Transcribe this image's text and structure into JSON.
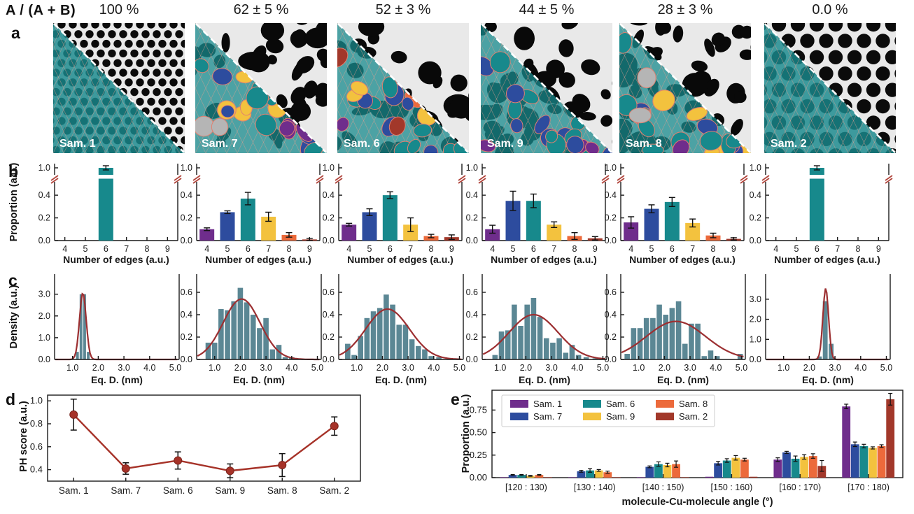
{
  "header": {
    "ratio_label": "A / (A + B)"
  },
  "panel_labels": {
    "a": "a",
    "b": "b",
    "c": "c",
    "d": "d",
    "e": "e"
  },
  "colors": {
    "palette": [
      "#6f2d8c",
      "#2d4c9e",
      "#17898c",
      "#f3c23e",
      "#ec6a3b",
      "#a2382a"
    ],
    "hist_bar": "#5b8794",
    "fit_curve": "#9c2f31",
    "ph_line": "#a63228",
    "break_mark": "#b0433a",
    "gray_blob": "#b5b5b5",
    "overlay_mesh": "#e2a193",
    "legend_border": "#cccccc"
  },
  "samples": [
    {
      "label": "Sam. 1",
      "ratio": "100 %",
      "pattern": "hex-small",
      "overlay": "uniform",
      "has_gray": false
    },
    {
      "label": "Sam. 7",
      "ratio": "62 ± 5 %",
      "pattern": "blob",
      "overlay": "mixed",
      "has_gray": true
    },
    {
      "label": "Sam. 6",
      "ratio": "52 ± 3 %",
      "pattern": "blob",
      "overlay": "mixed",
      "has_gray": false
    },
    {
      "label": "Sam. 9",
      "ratio": "44 ± 5 %",
      "pattern": "blob",
      "overlay": "mixed",
      "has_gray": false
    },
    {
      "label": "Sam. 8",
      "ratio": "28 ± 3 %",
      "pattern": "blob",
      "overlay": "mixed",
      "has_gray": true
    },
    {
      "label": "Sam. 2",
      "ratio": "0.0 %",
      "pattern": "hex-large",
      "overlay": "uniform",
      "has_gray": false
    }
  ],
  "chart_data": [
    {
      "id": "b-sam1",
      "panel": "b",
      "type": "bar",
      "sample": "Sam. 1",
      "broken_axis": true,
      "xlabel": "Number of edges (a.u.)",
      "ylabel": "Proportion (a.u.)",
      "categories": [
        "4",
        "5",
        "6",
        "7",
        "8",
        "9"
      ],
      "values": [
        0,
        0,
        1.0,
        0,
        0,
        0
      ],
      "errors": [
        0,
        0,
        0.01,
        0,
        0,
        0
      ],
      "yticks_lower": [
        "0.0",
        "0.2",
        "0.4"
      ],
      "ytick_top": "1.0"
    },
    {
      "id": "b-sam7",
      "panel": "b",
      "type": "bar",
      "sample": "Sam. 7",
      "broken_axis": true,
      "xlabel": "Number of edges (a.u.)",
      "categories": [
        "4",
        "5",
        "6",
        "7",
        "8",
        "9"
      ],
      "values": [
        0.1,
        0.25,
        0.37,
        0.21,
        0.05,
        0.01
      ],
      "errors": [
        0.012,
        0.012,
        0.055,
        0.04,
        0.02,
        0.01
      ],
      "yticks_lower": [
        "0.0",
        "0.2",
        "0.4"
      ],
      "ytick_top": "1.0"
    },
    {
      "id": "b-sam6",
      "panel": "b",
      "type": "bar",
      "sample": "Sam. 6",
      "broken_axis": true,
      "xlabel": "Number of edges (a.u.)",
      "categories": [
        "4",
        "5",
        "6",
        "7",
        "8",
        "9"
      ],
      "values": [
        0.14,
        0.25,
        0.4,
        0.14,
        0.04,
        0.03
      ],
      "errors": [
        0.012,
        0.03,
        0.03,
        0.06,
        0.015,
        0.02
      ],
      "yticks_lower": [
        "0.0",
        "0.2",
        "0.4"
      ],
      "ytick_top": "1.0"
    },
    {
      "id": "b-sam9",
      "panel": "b",
      "type": "bar",
      "sample": "Sam. 9",
      "broken_axis": true,
      "xlabel": "Number of edges (a.u.)",
      "categories": [
        "4",
        "5",
        "6",
        "7",
        "8",
        "9"
      ],
      "values": [
        0.1,
        0.35,
        0.35,
        0.14,
        0.04,
        0.02
      ],
      "errors": [
        0.035,
        0.085,
        0.06,
        0.025,
        0.03,
        0.015
      ],
      "yticks_lower": [
        "0.0",
        "0.2",
        "0.4"
      ],
      "ytick_top": "1.0"
    },
    {
      "id": "b-sam8",
      "panel": "b",
      "type": "bar",
      "sample": "Sam. 8",
      "broken_axis": true,
      "xlabel": "Number of edges (a.u.)",
      "categories": [
        "4",
        "5",
        "6",
        "7",
        "8",
        "9"
      ],
      "values": [
        0.16,
        0.28,
        0.34,
        0.155,
        0.045,
        0.015
      ],
      "errors": [
        0.05,
        0.035,
        0.04,
        0.035,
        0.02,
        0.01
      ],
      "yticks_lower": [
        "0.0",
        "0.2",
        "0.4"
      ],
      "ytick_top": "1.0"
    },
    {
      "id": "b-sam2",
      "panel": "b",
      "type": "bar",
      "sample": "Sam. 2",
      "broken_axis": true,
      "xlabel": "Number of edges (a.u.)",
      "categories": [
        "4",
        "5",
        "6",
        "7",
        "8",
        "9"
      ],
      "values": [
        0,
        0,
        1.0,
        0,
        0,
        0
      ],
      "errors": [
        0,
        0,
        0.01,
        0,
        0,
        0
      ],
      "yticks_lower": [
        "0.0",
        "0.2",
        "0.4"
      ],
      "ytick_top": "1.0"
    },
    {
      "id": "c-sam1",
      "panel": "c",
      "type": "histogram",
      "sample": "Sam. 1",
      "xlabel": "Eq. D. (nm)",
      "ylabel": "Density (a.u.)",
      "xlim": [
        0.3,
        5.15
      ],
      "xticks": [
        "1.0",
        "2.0",
        "3.0",
        "4.0",
        "5.0"
      ],
      "ymax": 3.6,
      "yticks": [
        0,
        1,
        2,
        3
      ],
      "ytick_labels": [
        "0.0",
        "1.0",
        "2.0",
        "3.0"
      ],
      "bin": 0.14,
      "bars": [
        [
          1.19,
          0.35
        ],
        [
          1.33,
          3.0
        ],
        [
          1.47,
          3.0
        ],
        [
          1.61,
          0.35
        ]
      ],
      "curve": {
        "mean": 1.4,
        "sigma": 0.13,
        "amp": 3.05
      }
    },
    {
      "id": "c-sam7",
      "panel": "c",
      "type": "histogram",
      "sample": "Sam. 7",
      "xlabel": "Eq. D. (nm)",
      "xlim": [
        0.3,
        5.15
      ],
      "xticks": [
        "1.0",
        "2.0",
        "3.0",
        "4.0",
        "5.0"
      ],
      "ymax": 0.7,
      "yticks": [
        0,
        0.2,
        0.4,
        0.6
      ],
      "ytick_labels": [
        "0.0",
        "0.2",
        "0.4",
        "0.6"
      ],
      "bin": 0.24,
      "bars": [
        [
          0.75,
          0.15
        ],
        [
          1.0,
          0.15
        ],
        [
          1.25,
          0.45
        ],
        [
          1.5,
          0.44
        ],
        [
          1.75,
          0.52
        ],
        [
          2.0,
          0.64
        ],
        [
          2.25,
          0.51
        ],
        [
          2.5,
          0.4
        ],
        [
          2.75,
          0.28
        ],
        [
          3.0,
          0.37
        ],
        [
          3.25,
          0.09
        ],
        [
          3.5,
          0.13
        ],
        [
          3.75,
          0.02
        ],
        [
          4.0,
          0.02
        ]
      ],
      "curve": {
        "mean": 2.05,
        "sigma": 0.72,
        "amp": 0.54
      }
    },
    {
      "id": "c-sam6",
      "panel": "c",
      "type": "histogram",
      "sample": "Sam. 6",
      "xlabel": "Eq. D. (nm)",
      "xlim": [
        0.3,
        5.15
      ],
      "xticks": [
        "1.0",
        "2.0",
        "3.0",
        "4.0",
        "5.0"
      ],
      "ymax": 0.7,
      "yticks": [
        0,
        0.2,
        0.4,
        0.6
      ],
      "ytick_labels": [
        "0.0",
        "0.2",
        "0.4",
        "0.6"
      ],
      "bin": 0.24,
      "bars": [
        [
          0.65,
          0.14
        ],
        [
          0.9,
          0.04
        ],
        [
          1.15,
          0.21
        ],
        [
          1.4,
          0.37
        ],
        [
          1.65,
          0.43
        ],
        [
          1.9,
          0.46
        ],
        [
          2.15,
          0.58
        ],
        [
          2.4,
          0.49
        ],
        [
          2.65,
          0.31
        ],
        [
          2.9,
          0.31
        ],
        [
          3.15,
          0.18
        ],
        [
          3.4,
          0.12
        ],
        [
          3.65,
          0.09
        ],
        [
          3.9,
          0.03
        ],
        [
          4.2,
          0.02
        ],
        [
          4.9,
          0.01
        ]
      ],
      "curve": {
        "mean": 2.2,
        "sigma": 0.85,
        "amp": 0.45
      }
    },
    {
      "id": "c-sam9",
      "panel": "c",
      "type": "histogram",
      "sample": "Sam. 9",
      "xlabel": "Eq. D. (nm)",
      "xlim": [
        0.3,
        5.15
      ],
      "xticks": [
        "1.0",
        "2.0",
        "3.0",
        "4.0",
        "5.0"
      ],
      "ymax": 0.7,
      "yticks": [
        0,
        0.2,
        0.4,
        0.6
      ],
      "ytick_labels": [
        "0.0",
        "0.2",
        "0.4",
        "0.6"
      ],
      "bin": 0.24,
      "bars": [
        [
          0.8,
          0.04
        ],
        [
          1.05,
          0.25
        ],
        [
          1.3,
          0.26
        ],
        [
          1.55,
          0.49
        ],
        [
          1.8,
          0.3
        ],
        [
          2.05,
          0.49
        ],
        [
          2.3,
          0.55
        ],
        [
          2.55,
          0.38
        ],
        [
          2.8,
          0.19
        ],
        [
          3.05,
          0.15
        ],
        [
          3.3,
          0.19
        ],
        [
          3.55,
          0.06
        ],
        [
          3.8,
          0.13
        ],
        [
          4.05,
          0.04
        ],
        [
          4.35,
          0.02
        ],
        [
          4.7,
          0.01
        ]
      ],
      "curve": {
        "mean": 2.3,
        "sigma": 0.95,
        "amp": 0.4
      }
    },
    {
      "id": "c-sam8",
      "panel": "c",
      "type": "histogram",
      "sample": "Sam. 8",
      "xlabel": "Eq. D. (nm)",
      "xlim": [
        0.3,
        5.15
      ],
      "xticks": [
        "1.0",
        "2.0",
        "3.0",
        "4.0",
        "5.0"
      ],
      "ymax": 0.7,
      "yticks": [
        0,
        0.2,
        0.4,
        0.6
      ],
      "ytick_labels": [
        "0.0",
        "0.2",
        "0.4",
        "0.6"
      ],
      "bin": 0.24,
      "bars": [
        [
          0.55,
          0.05
        ],
        [
          0.8,
          0.28
        ],
        [
          1.05,
          0.28
        ],
        [
          1.3,
          0.37
        ],
        [
          1.55,
          0.37
        ],
        [
          1.8,
          0.49
        ],
        [
          2.05,
          0.4
        ],
        [
          2.3,
          0.46
        ],
        [
          2.55,
          0.52
        ],
        [
          2.8,
          0.14
        ],
        [
          3.05,
          0.32
        ],
        [
          3.3,
          0.32
        ],
        [
          3.55,
          0.03
        ],
        [
          3.8,
          0.08
        ],
        [
          4.05,
          0.03
        ],
        [
          4.95,
          0.05
        ]
      ],
      "curve": {
        "mean": 2.45,
        "sigma": 1.15,
        "amp": 0.34
      }
    },
    {
      "id": "c-sam2",
      "panel": "c",
      "type": "histogram",
      "sample": "Sam. 2",
      "xlabel": "Eq. D. (nm)",
      "xlim": [
        0.3,
        5.15
      ],
      "xticks": [
        "1.0",
        "2.0",
        "3.0",
        "4.0",
        "5.0"
      ],
      "ymax": 3.9,
      "yticks": [
        0,
        1,
        2,
        3
      ],
      "ytick_labels": [
        "0.0",
        "1.0",
        "2.0",
        "3.0"
      ],
      "bin": 0.22,
      "bars": [
        [
          2.39,
          0.15
        ],
        [
          2.62,
          2.9
        ],
        [
          2.85,
          0.78
        ]
      ],
      "curve": {
        "mean": 2.64,
        "sigma": 0.11,
        "amp": 3.55
      }
    },
    {
      "id": "d-ph-score",
      "panel": "d",
      "type": "line",
      "ylabel": "PH score (a.u.)",
      "categories": [
        "Sam. 1",
        "Sam. 7",
        "Sam. 6",
        "Sam. 9",
        "Sam. 8",
        "Sam. 2"
      ],
      "values": [
        0.88,
        0.41,
        0.48,
        0.39,
        0.44,
        0.78
      ],
      "errors": [
        0.135,
        0.05,
        0.075,
        0.06,
        0.1,
        0.08
      ],
      "ylim": [
        0.3,
        1.05
      ],
      "yticks": [
        0.4,
        0.6,
        0.8,
        1.0
      ],
      "ytick_labels": [
        "0.4",
        "0.6",
        "0.8",
        "1.0"
      ]
    },
    {
      "id": "e-angle",
      "panel": "e",
      "type": "grouped-bar",
      "xlabel": "molecule-Cu-molecule angle (°)",
      "ylabel": "Proportion (a.u.)",
      "categories": [
        "[120 : 130)",
        "[130 : 140)",
        "[140 : 150)",
        "[150 : 160)",
        "[160 : 170)",
        "[170 : 180)"
      ],
      "ylim": [
        0,
        0.97
      ],
      "yticks": [
        0,
        0.25,
        0.5,
        0.75
      ],
      "ytick_labels": [
        "0.00",
        "0.25",
        "0.50",
        "0.75"
      ],
      "legend_position": "top-left",
      "series": [
        {
          "name": "Sam. 1",
          "values": [
            0.005,
            0.005,
            0.005,
            0.01,
            0.2,
            0.79
          ],
          "errors": [
            0.003,
            0.003,
            0.003,
            0.005,
            0.02,
            0.025
          ]
        },
        {
          "name": "Sam. 7",
          "values": [
            0.03,
            0.07,
            0.12,
            0.16,
            0.28,
            0.37
          ],
          "errors": [
            0.005,
            0.01,
            0.01,
            0.02,
            0.012,
            0.025
          ]
        },
        {
          "name": "Sam. 6",
          "values": [
            0.03,
            0.08,
            0.15,
            0.19,
            0.21,
            0.35
          ],
          "errors": [
            0.005,
            0.02,
            0.025,
            0.02,
            0.03,
            0.02
          ]
        },
        {
          "name": "Sam. 9",
          "values": [
            0.02,
            0.08,
            0.14,
            0.22,
            0.23,
            0.33
          ],
          "errors": [
            0.005,
            0.01,
            0.02,
            0.025,
            0.025,
            0.012
          ]
        },
        {
          "name": "Sam. 8",
          "values": [
            0.03,
            0.06,
            0.15,
            0.2,
            0.24,
            0.35
          ],
          "errors": [
            0.005,
            0.012,
            0.035,
            0.015,
            0.025,
            0.015
          ]
        },
        {
          "name": "Sam. 2",
          "values": [
            0.005,
            0.005,
            0.005,
            0.01,
            0.13,
            0.87
          ],
          "errors": [
            0.003,
            0.003,
            0.003,
            0.005,
            0.06,
            0.065
          ]
        }
      ]
    }
  ]
}
